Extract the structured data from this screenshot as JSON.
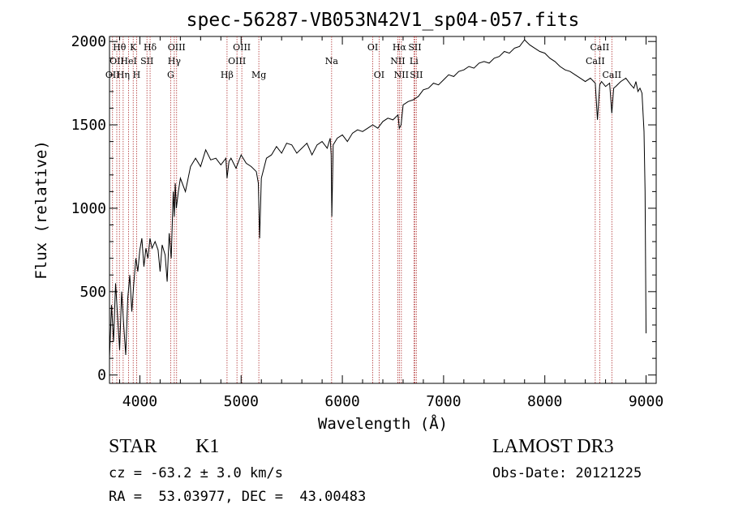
{
  "chart_data": {
    "type": "line",
    "title": "spec-56287-VB053N42V1_sp04-057.fits",
    "xlabel": "Wavelength (Å)",
    "ylabel": "Flux (relative)",
    "xlim": [
      3700,
      9100
    ],
    "ylim": [
      -50,
      2030
    ],
    "xticks": [
      4000,
      5000,
      6000,
      7000,
      8000,
      9000
    ],
    "xtick_labels": [
      "4000",
      "5000",
      "6000",
      "7000",
      "8000",
      "9000"
    ],
    "yticks": [
      0,
      500,
      1000,
      1500,
      2000
    ],
    "ytick_labels": [
      "0",
      "500",
      "1000",
      "1500",
      "2000"
    ],
    "grid": false,
    "series": [
      {
        "name": "spectrum",
        "x": [
          3700,
          3720,
          3740,
          3760,
          3780,
          3800,
          3820,
          3840,
          3860,
          3880,
          3900,
          3920,
          3940,
          3960,
          3980,
          4000,
          4020,
          4040,
          4060,
          4080,
          4100,
          4120,
          4150,
          4180,
          4200,
          4220,
          4250,
          4270,
          4290,
          4310,
          4330,
          4340,
          4350,
          4360,
          4380,
          4400,
          4450,
          4500,
          4550,
          4600,
          4650,
          4700,
          4750,
          4800,
          4850,
          4861,
          4880,
          4900,
          4950,
          5000,
          5050,
          5100,
          5150,
          5170,
          5183,
          5200,
          5250,
          5300,
          5350,
          5400,
          5450,
          5500,
          5550,
          5600,
          5650,
          5700,
          5750,
          5800,
          5850,
          5880,
          5890,
          5896,
          5910,
          5950,
          6000,
          6050,
          6100,
          6150,
          6200,
          6250,
          6300,
          6350,
          6400,
          6450,
          6500,
          6550,
          6563,
          6580,
          6600,
          6650,
          6700,
          6750,
          6800,
          6850,
          6900,
          6950,
          7000,
          7050,
          7100,
          7150,
          7200,
          7250,
          7300,
          7350,
          7400,
          7450,
          7500,
          7550,
          7600,
          7650,
          7700,
          7750,
          7800,
          7850,
          7900,
          7950,
          8000,
          8050,
          8100,
          8150,
          8200,
          8250,
          8300,
          8350,
          8400,
          8450,
          8498,
          8520,
          8542,
          8560,
          8600,
          8640,
          8662,
          8680,
          8700,
          8750,
          8800,
          8850,
          8880,
          8900,
          8920,
          8940,
          8960,
          8980,
          8990,
          9000
        ],
        "y": [
          100,
          420,
          200,
          550,
          350,
          150,
          500,
          300,
          120,
          460,
          600,
          380,
          550,
          700,
          620,
          750,
          820,
          650,
          760,
          700,
          820,
          760,
          800,
          750,
          620,
          780,
          720,
          560,
          850,
          700,
          1100,
          950,
          1150,
          1000,
          1100,
          1180,
          1100,
          1250,
          1300,
          1250,
          1350,
          1290,
          1300,
          1260,
          1300,
          1180,
          1280,
          1300,
          1240,
          1320,
          1270,
          1250,
          1220,
          1150,
          820,
          1180,
          1300,
          1320,
          1370,
          1330,
          1390,
          1380,
          1330,
          1360,
          1390,
          1320,
          1380,
          1400,
          1360,
          1420,
          1320,
          950,
          1380,
          1420,
          1440,
          1400,
          1450,
          1470,
          1460,
          1480,
          1500,
          1480,
          1520,
          1540,
          1530,
          1560,
          1480,
          1500,
          1620,
          1640,
          1650,
          1670,
          1710,
          1720,
          1750,
          1740,
          1770,
          1800,
          1790,
          1820,
          1830,
          1850,
          1840,
          1870,
          1880,
          1870,
          1900,
          1910,
          1940,
          1930,
          1960,
          1970,
          2010,
          1980,
          1960,
          1940,
          1930,
          1900,
          1880,
          1850,
          1830,
          1820,
          1800,
          1780,
          1760,
          1780,
          1750,
          1530,
          1740,
          1760,
          1730,
          1750,
          1570,
          1720,
          1730,
          1760,
          1780,
          1740,
          1720,
          1760,
          1700,
          1720,
          1690,
          1460,
          1100,
          250
        ]
      }
    ],
    "lines": [
      {
        "wl": 3730,
        "label": "OII",
        "row": 2
      },
      {
        "wl": 3772,
        "label": "OII",
        "row": 1
      },
      {
        "wl": 3798,
        "label": "Hθ",
        "row": 0
      },
      {
        "wl": 3835,
        "label": "Hη",
        "row": 2
      },
      {
        "wl": 3889,
        "label": "HeI",
        "row": 1
      },
      {
        "wl": 3934,
        "label": "K",
        "row": 0
      },
      {
        "wl": 3968,
        "label": "H",
        "row": 2
      },
      {
        "wl": 4070,
        "label": "SII",
        "row": 1
      },
      {
        "wl": 4101,
        "label": "Hδ",
        "row": 0
      },
      {
        "wl": 4304,
        "label": "G",
        "row": 2
      },
      {
        "wl": 4340,
        "label": "Hγ",
        "row": 1
      },
      {
        "wl": 4363,
        "label": "OIII",
        "row": 0
      },
      {
        "wl": 4861,
        "label": "Hβ",
        "row": 2
      },
      {
        "wl": 4959,
        "label": "OIII",
        "row": 1
      },
      {
        "wl": 5007,
        "label": "OIII",
        "row": 0
      },
      {
        "wl": 5175,
        "label": "Mg",
        "row": 2
      },
      {
        "wl": 5894,
        "label": "Na",
        "row": 1
      },
      {
        "wl": 6300,
        "label": "OI",
        "row": 0
      },
      {
        "wl": 6363,
        "label": "OI",
        "row": 2
      },
      {
        "wl": 6548,
        "label": "NII",
        "row": 1
      },
      {
        "wl": 6563,
        "label": "Hα",
        "row": 0
      },
      {
        "wl": 6583,
        "label": "NII",
        "row": 2
      },
      {
        "wl": 6707,
        "label": "Li",
        "row": 1
      },
      {
        "wl": 6716,
        "label": "SII",
        "row": 0
      },
      {
        "wl": 6731,
        "label": "SII",
        "row": 2
      },
      {
        "wl": 8498,
        "label": "CaII",
        "row": 1
      },
      {
        "wl": 8542,
        "label": "CaII",
        "row": 0
      },
      {
        "wl": 8662,
        "label": "CaII",
        "row": 2
      }
    ]
  },
  "footer": {
    "class_label": "STAR",
    "subclass": "K1",
    "survey": "LAMOST DR3",
    "cz": "cz = -63.2 ± 3.0 km/s",
    "obs_date": "Obs-Date: 20121225",
    "coords": "RA =  53.03977, DEC =  43.00483"
  }
}
